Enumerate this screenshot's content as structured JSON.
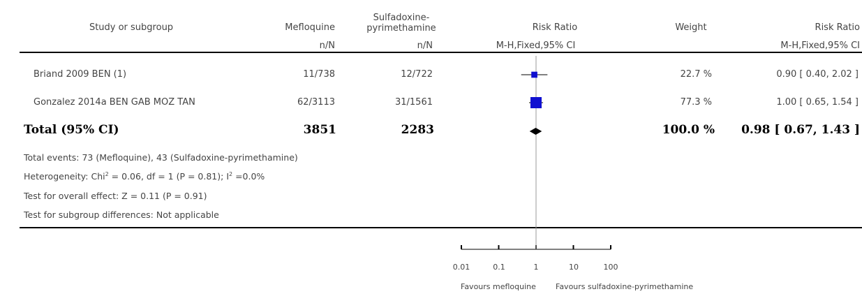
{
  "header": {
    "study": "Study or subgroup",
    "group1": "Mefloquine",
    "group2_line1": "Sulfadoxine-",
    "group2_line2": "pyrimethamine",
    "plot_title": "Risk Ratio",
    "weight": "Weight",
    "rr_title": "Risk Ratio",
    "group1_sub": "n/N",
    "group2_sub": "n/N",
    "plot_sub": "M-H,Fixed,95% CI",
    "rr_sub": "M-H,Fixed,95% CI"
  },
  "studies": [
    {
      "name": "Briand 2009 BEN (1)",
      "g1": "11/738",
      "g2": "12/722",
      "weight": "22.7 %",
      "rr_text": "0.90 [ 0.40, 2.02 ]"
    },
    {
      "name": "Gonzalez 2014a BEN GAB MOZ TAN",
      "g1": "62/3113",
      "g2": "31/1561",
      "weight": "77.3 %",
      "rr_text": "1.00 [ 0.65, 1.54 ]"
    }
  ],
  "total": {
    "name": "Total (95% CI)",
    "g1": "3851",
    "g2": "2283",
    "weight": "100.0 %",
    "rr_text": "0.98 [ 0.67, 1.43 ]"
  },
  "notes": {
    "events": "Total events: 73 (Mefloquine), 43 (Sulfadoxine-pyrimethamine)",
    "het_a": "Heterogeneity: Chi",
    "het_sup1": "2",
    "het_b": " = 0.06, df = 1 (P = 0.81); I",
    "het_sup2": "2",
    "het_c": " =0.0%",
    "overall": "Test for overall effect: Z = 0.11 (P = 0.91)",
    "subgroup": "Test for subgroup differences: Not applicable"
  },
  "axis": {
    "ticks": [
      "0.01",
      "0.1",
      "1",
      "10",
      "100"
    ],
    "favours_left": "Favours mefloquine",
    "favours_right": "Favours sulfadoxine-pyrimethamine"
  },
  "colors": {
    "marker": "#1010d0",
    "diamond": "#000000",
    "line": "#000000"
  },
  "chart_data": {
    "type": "forest",
    "scale": "log",
    "xlim": [
      0.01,
      100
    ],
    "tick_values": [
      0.01,
      0.1,
      1,
      10,
      100
    ],
    "studies": [
      {
        "name": "Briand 2009 BEN (1)",
        "rr": 0.9,
        "lower": 0.4,
        "upper": 2.02,
        "weight": 22.7
      },
      {
        "name": "Gonzalez 2014a BEN GAB MOZ TAN",
        "rr": 1.0,
        "lower": 0.65,
        "upper": 1.54,
        "weight": 77.3
      }
    ],
    "pooled": {
      "rr": 0.98,
      "lower": 0.67,
      "upper": 1.43
    }
  }
}
